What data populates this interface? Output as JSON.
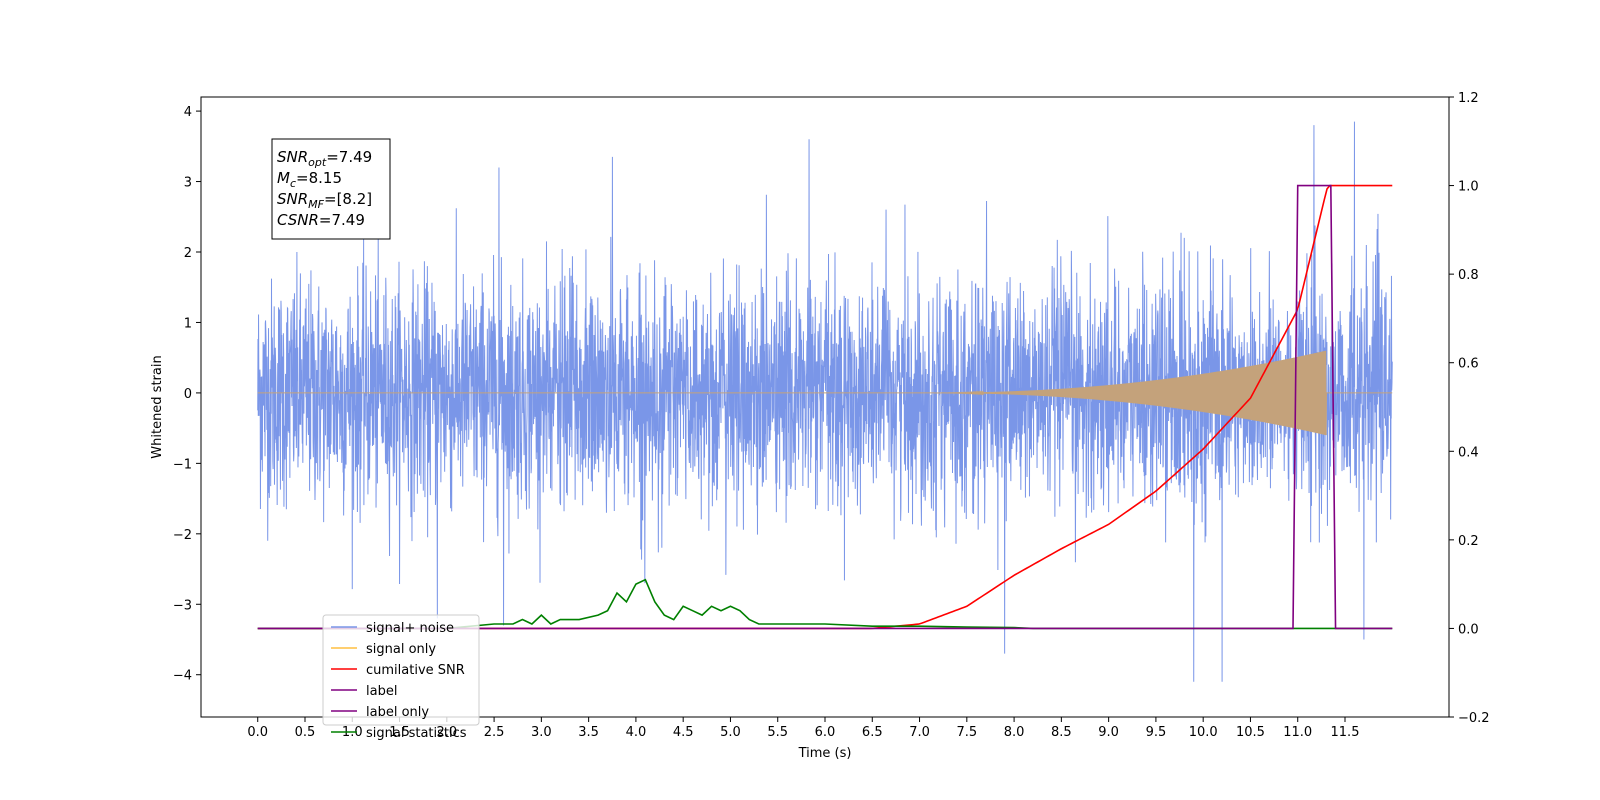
{
  "chart_data": {
    "type": "line",
    "xlabel": "Time (s)",
    "ylabel": "Whitened strain",
    "xlim": [
      -0.6,
      12.6
    ],
    "ylim": [
      -4.6,
      4.2
    ],
    "y2lim": [
      -0.2,
      1.2
    ],
    "xticks": [
      "0.0",
      "0.5",
      "1.0",
      "1.5",
      "2.0",
      "2.5",
      "3.0",
      "3.5",
      "4.0",
      "4.5",
      "5.0",
      "5.5",
      "6.0",
      "6.5",
      "7.0",
      "7.5",
      "8.0",
      "8.5",
      "9.0",
      "9.5",
      "10.0",
      "10.5",
      "11.0",
      "11.5"
    ],
    "yticks": [
      "4",
      "3",
      "2",
      "1",
      "0",
      "−1",
      "−2",
      "−3",
      "−4"
    ],
    "y2ticks": [
      "1.2",
      "1.0",
      "0.8",
      "0.6",
      "0.4",
      "0.2",
      "0.0",
      "−0.2"
    ],
    "grid": false,
    "legend_position": "lower-left",
    "info_box": {
      "lines": [
        {
          "main": "SNR",
          "sub": "opt",
          "value": "=7.49"
        },
        {
          "main": "M",
          "sub": "c",
          "value": "=8.15"
        },
        {
          "main": "SNR",
          "sub": "MF",
          "value": "=[8.2]"
        },
        {
          "main": "CSNR",
          "sub": "",
          "value": "=7.49"
        }
      ]
    },
    "series": [
      {
        "name": "signal+ noise",
        "color": "#7a96e8",
        "axis": "left",
        "duration": 12.0,
        "noise_std": 0.8,
        "spikes": [
          [
            5.83,
            3.6
          ],
          [
            11.17,
            3.8
          ],
          [
            11.6,
            3.85
          ],
          [
            3.75,
            3.35
          ],
          [
            2.55,
            3.2
          ],
          [
            9.9,
            -4.1
          ],
          [
            10.2,
            -4.1
          ],
          [
            7.9,
            -3.7
          ],
          [
            11.7,
            -3.5
          ],
          [
            1.9,
            -3.2
          ],
          [
            2.6,
            -3.3
          ]
        ]
      },
      {
        "name": "signal only",
        "color": "#c4a27b",
        "axis": "left",
        "chirp_start": 7.0,
        "merger": 11.3,
        "max_amp": 0.6
      },
      {
        "name": "cumilative SNR",
        "color": "#ff0000",
        "axis": "right",
        "x": [
          0.0,
          6.5,
          7.0,
          7.5,
          8.0,
          8.5,
          9.0,
          9.5,
          10.0,
          10.5,
          11.0,
          11.3,
          11.32,
          12.0
        ],
        "values": [
          0.0,
          0.0,
          0.01,
          0.05,
          0.12,
          0.18,
          0.235,
          0.31,
          0.405,
          0.52,
          0.72,
          0.985,
          1.0,
          1.0
        ]
      },
      {
        "name": "label",
        "color": "#800080",
        "axis": "right",
        "x": [
          0.0,
          10.95,
          11.0,
          11.35,
          11.4,
          12.0
        ],
        "values": [
          0.0,
          0.0,
          1.0,
          1.0,
          0.0,
          0.0
        ]
      },
      {
        "name": "signal statistics",
        "color": "#008000",
        "axis": "right",
        "x": [
          0.0,
          2.0,
          2.5,
          2.7,
          2.8,
          2.9,
          3.0,
          3.1,
          3.2,
          3.4,
          3.6,
          3.7,
          3.8,
          3.9,
          4.0,
          4.1,
          4.2,
          4.3,
          4.4,
          4.5,
          4.6,
          4.7,
          4.8,
          4.9,
          5.0,
          5.1,
          5.2,
          5.3,
          5.4,
          5.6,
          5.8,
          6.0,
          6.5,
          7.0,
          7.5,
          8.0,
          8.2,
          12.0
        ],
        "values": [
          0.0,
          0.0,
          0.01,
          0.01,
          0.02,
          0.01,
          0.03,
          0.01,
          0.02,
          0.02,
          0.03,
          0.04,
          0.08,
          0.06,
          0.1,
          0.11,
          0.06,
          0.03,
          0.02,
          0.05,
          0.04,
          0.03,
          0.05,
          0.04,
          0.05,
          0.04,
          0.02,
          0.01,
          0.01,
          0.01,
          0.01,
          0.01,
          0.005,
          0.005,
          0.003,
          0.002,
          0.0,
          0.0
        ]
      },
      {
        "name": "label only",
        "color": "#800080",
        "axis": "right",
        "hidden_in_plot": true
      }
    ],
    "legend": [
      "signal+ noise",
      "signal only",
      "cumilative SNR",
      "label",
      "label only",
      "signal statistics"
    ]
  }
}
